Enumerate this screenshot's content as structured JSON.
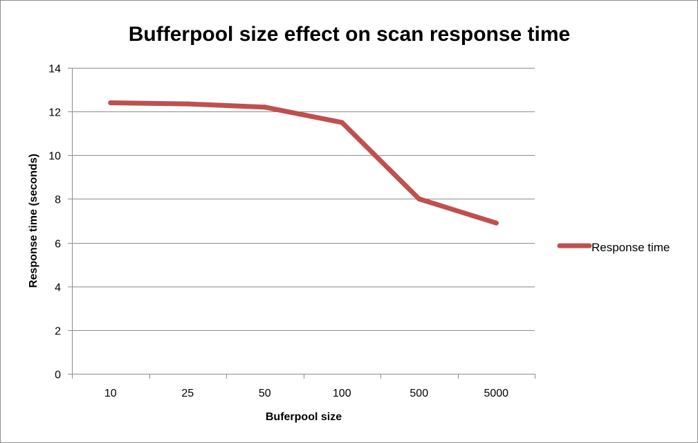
{
  "chart_data": {
    "type": "line",
    "title": "Bufferpool size effect on scan response time",
    "xlabel": "Buferpool size",
    "ylabel": "Response time (seconds)",
    "categories": [
      "10",
      "25",
      "50",
      "100",
      "500",
      "5000"
    ],
    "ylim": [
      0,
      14
    ],
    "yticks": [
      0,
      2,
      4,
      6,
      8,
      10,
      12,
      14
    ],
    "grid": true,
    "legend_position": "right",
    "series": [
      {
        "name": "Response time",
        "values": [
          12.4,
          12.35,
          12.2,
          11.5,
          8.0,
          6.9
        ],
        "color": "#c0504d"
      }
    ]
  }
}
